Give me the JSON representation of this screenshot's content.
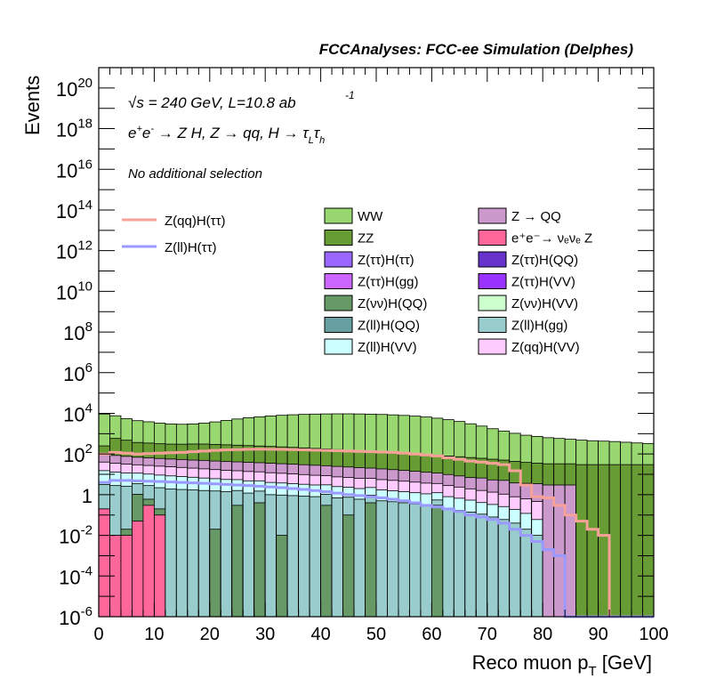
{
  "header": {
    "title": "FCCAnalyses: FCC-ee Simulation (Delphes)"
  },
  "annotations": {
    "sqrt": "√s",
    "energy": " = 240 GeV, L=10.8 ab",
    "lumi_exp": "-1",
    "process_prefix": "e",
    "process_rest": " → Z H, Z  → qq, H  → τ",
    "tau_l": "L",
    "tau_h_sym": "τ",
    "tau_h": "h",
    "plus": "+",
    "minus": "-",
    "selection": "No additional selection"
  },
  "colors": {
    "frame": "#000000",
    "signal_qq": "#f7a199",
    "signal_ll": "#9999ff"
  },
  "chart_data": {
    "type": "bar",
    "title": "FCCAnalyses: FCC-ee Simulation (Delphes)",
    "xlabel": "Reco muon p",
    "xlabel_sub": "T",
    "xlabel_unit": " [GeV]",
    "ylabel": "Events",
    "xlim": [
      0,
      100
    ],
    "ylim": [
      1e-06,
      1e+21
    ],
    "y_scale": "log",
    "grid": false,
    "x_ticks": [
      0,
      10,
      20,
      30,
      40,
      50,
      60,
      70,
      80,
      90,
      100
    ],
    "y_ticks": [
      {
        "v": 1e-06,
        "base": "10",
        "exp": "-6"
      },
      {
        "v": 0.0001,
        "base": "10",
        "exp": "-4"
      },
      {
        "v": 0.01,
        "base": "10",
        "exp": "-2"
      },
      {
        "v": 1,
        "base": "1",
        "exp": ""
      },
      {
        "v": 100.0,
        "base": "10",
        "exp": "2"
      },
      {
        "v": 10000.0,
        "base": "10",
        "exp": "4"
      },
      {
        "v": 1000000.0,
        "base": "10",
        "exp": "6"
      },
      {
        "v": 100000000.0,
        "base": "10",
        "exp": "8"
      },
      {
        "v": 10000000000.0,
        "base": "10",
        "exp": "10"
      },
      {
        "v": 1000000000000.0,
        "base": "10",
        "exp": "12"
      },
      {
        "v": 100000000000000.0,
        "base": "10",
        "exp": "14"
      },
      {
        "v": 1e+16,
        "base": "10",
        "exp": "16"
      },
      {
        "v": 1e+18,
        "base": "10",
        "exp": "18"
      },
      {
        "v": 1e+20,
        "base": "10",
        "exp": "20"
      }
    ],
    "bin_width": 2,
    "stack_components": [
      {
        "name": "WW",
        "color": "#99d770",
        "values": [
          9000,
          7000,
          5000,
          4000,
          3500,
          3000,
          2700,
          2600,
          2700,
          3000,
          3500,
          4200,
          5000,
          5800,
          6500,
          7200,
          7800,
          8300,
          8700,
          9000,
          9200,
          9300,
          9300,
          9200,
          9000,
          8700,
          8300,
          7800,
          7200,
          6500,
          5700,
          4800,
          3900,
          3000,
          2300,
          1700,
          1300,
          1000,
          800,
          700,
          600,
          550,
          500,
          450,
          420,
          400,
          380,
          350,
          320,
          300
        ]
      },
      {
        "name": "ZZ",
        "color": "#679b34",
        "values": [
          150,
          500,
          400,
          300,
          280,
          260,
          250,
          250,
          260,
          260,
          250,
          240,
          230,
          220,
          210,
          200,
          190,
          180,
          170,
          160,
          150,
          140,
          130,
          120,
          110,
          100,
          95,
          90,
          85,
          80,
          75,
          70,
          65,
          60,
          55,
          50,
          45,
          40,
          35,
          32,
          30,
          30,
          30,
          30,
          30,
          30,
          30,
          30,
          30,
          30
        ]
      },
      {
        "name": "Z → QQ",
        "color": "#cc99cc",
        "values": [
          60,
          50,
          45,
          40,
          38,
          35,
          33,
          32,
          30,
          30,
          28,
          27,
          26,
          25,
          24,
          23,
          22,
          21,
          20,
          19,
          18,
          17,
          16,
          15,
          14,
          13,
          12,
          11,
          10,
          9,
          8,
          7,
          6,
          5,
          5,
          4,
          4,
          3,
          3,
          3,
          3,
          3,
          3,
          0,
          0,
          0,
          0,
          0,
          0,
          0
        ]
      },
      {
        "name": "Z(qq)H(VV)",
        "color": "#ffccff",
        "values": [
          25,
          22,
          20,
          18,
          17,
          16,
          15,
          14,
          13,
          12,
          11,
          10,
          9.5,
          9,
          8.5,
          8,
          7.5,
          7,
          6.5,
          6,
          5.5,
          5,
          4.7,
          4.4,
          4.1,
          3.8,
          3.5,
          3.2,
          2.9,
          2.6,
          2.3,
          2.0,
          1.7,
          1.4,
          1.2,
          1.0,
          0.8,
          0.6,
          0.5,
          0.4,
          0,
          0,
          0,
          0,
          0,
          0,
          0,
          0,
          0,
          0
        ]
      },
      {
        "name": "Z(ll)H(VV)",
        "color": "#ccffff",
        "values": [
          12,
          10,
          9,
          8,
          7.5,
          7,
          6.5,
          6,
          5.5,
          5,
          4.6,
          4.2,
          3.9,
          3.6,
          3.3,
          3.0,
          2.8,
          2.6,
          2.4,
          2.2,
          2.0,
          1.8,
          1.6,
          1.4,
          1.3,
          1.2,
          1.1,
          1.0,
          0.9,
          0.8,
          0.7,
          0.6,
          0.5,
          0.4,
          0.3,
          0.25,
          0.2,
          0.15,
          0.1,
          0.05,
          0,
          0,
          0,
          0,
          0,
          0,
          0,
          0,
          0,
          0
        ]
      },
      {
        "name": "Z(ll)H(gg)",
        "color": "#99cccc",
        "values": [
          3,
          2.8,
          2.6,
          2.4,
          2.2,
          2.0,
          1.9,
          1.8,
          1.7,
          1.6,
          1.5,
          1.4,
          1.3,
          1.2,
          1.1,
          1.0,
          0.95,
          0.9,
          0.85,
          0.8,
          0.75,
          0.7,
          0.65,
          0.6,
          0.55,
          0.5,
          0.45,
          0.4,
          0.35,
          0.3,
          0.25,
          0.2,
          0.17,
          0.14,
          0.11,
          0.08,
          0.06,
          0.04,
          0.02,
          0.01,
          0,
          0,
          0,
          0,
          0,
          0,
          0,
          0,
          0,
          0
        ]
      },
      {
        "name": "Z(νν)H(QQ)",
        "color": "#669966",
        "values": [
          0,
          0,
          0.01,
          1,
          0.3,
          0.1,
          0,
          0,
          0,
          0,
          0.02,
          0,
          0.3,
          0,
          0.4,
          0,
          0.01,
          0,
          0,
          0,
          0.3,
          0,
          0.1,
          0,
          0.4,
          0,
          0,
          0,
          0,
          0,
          0.3,
          0,
          0,
          0,
          0,
          0,
          0,
          0,
          0,
          0,
          0,
          0,
          0,
          0,
          0,
          0,
          0,
          0,
          0,
          0
        ]
      },
      {
        "name": "e⁺e⁻→ νₑνₑ Z",
        "color": "#ff6699",
        "values": [
          0.2,
          0.01,
          0.01,
          0.05,
          0.3,
          0.1,
          0,
          0,
          0,
          0,
          0,
          0,
          0,
          0,
          0,
          0,
          0,
          0,
          0,
          0,
          0,
          0,
          0,
          0,
          0,
          0,
          0,
          0,
          0,
          0,
          0,
          0,
          0,
          0,
          0,
          0,
          0,
          0,
          0,
          0,
          0,
          0,
          0,
          0,
          0,
          0,
          0,
          0,
          0,
          0
        ]
      }
    ],
    "signals": [
      {
        "name": "Z(qq)H(ττ)",
        "color": "#f7a199",
        "values": [
          100,
          120,
          110,
          100,
          105,
          110,
          115,
          120,
          130,
          140,
          150,
          160,
          165,
          170,
          172,
          170,
          168,
          165,
          160,
          155,
          150,
          145,
          140,
          135,
          130,
          125,
          120,
          110,
          100,
          90,
          80,
          65,
          55,
          45,
          40,
          35,
          30,
          15,
          3,
          0.8,
          0.7,
          0.3,
          0.1,
          0.05,
          0.02,
          0.01,
          1e-06,
          1e-06,
          1e-06,
          1e-06
        ]
      },
      {
        "name": "Z(ll)H(ττ)",
        "color": "#9999ff",
        "values": [
          4,
          5,
          5,
          4.8,
          4.6,
          4.4,
          4.2,
          4.0,
          3.8,
          3.6,
          3.4,
          3.2,
          3.0,
          2.8,
          2.6,
          2.4,
          2.2,
          2.0,
          1.8,
          1.6,
          1.4,
          1.2,
          1.0,
          0.9,
          0.8,
          0.7,
          0.6,
          0.5,
          0.4,
          0.3,
          0.25,
          0.2,
          0.15,
          0.1,
          0.08,
          0.06,
          0.04,
          0.02,
          0.01,
          0.005,
          0.002,
          0.001,
          1e-06,
          1e-06,
          1e-06,
          1e-06,
          1e-06,
          1e-06,
          1e-06,
          1e-06
        ]
      }
    ],
    "legend": {
      "placement": "top",
      "signal_entries": [
        "Z(qq)H(ττ)",
        "Z(ll)H(ττ)"
      ],
      "col1": [
        "WW",
        "ZZ",
        "Z(ττ)H(ττ)",
        "Z(ττ)H(gg)",
        "Z(νν)H(QQ)",
        "Z(ll)H(QQ)",
        "Z(ll)H(VV)"
      ],
      "col2": [
        "Z → QQ",
        "e⁺e⁻→ νₑνₑ Z",
        "Z(ττ)H(QQ)",
        "Z(ττ)H(VV)",
        "Z(νν)H(VV)",
        "Z(ll)H(gg)",
        "Z(qq)H(VV)"
      ],
      "col1_colors": [
        "#99d770",
        "#679b34",
        "#9966ff",
        "#cc66ff",
        "#669966",
        "#66a0a0",
        "#ccffff"
      ],
      "col2_colors": [
        "#cc99cc",
        "#ff6699",
        "#6633cc",
        "#9933ff",
        "#ccffcc",
        "#99cccc",
        "#ffccff"
      ]
    }
  }
}
